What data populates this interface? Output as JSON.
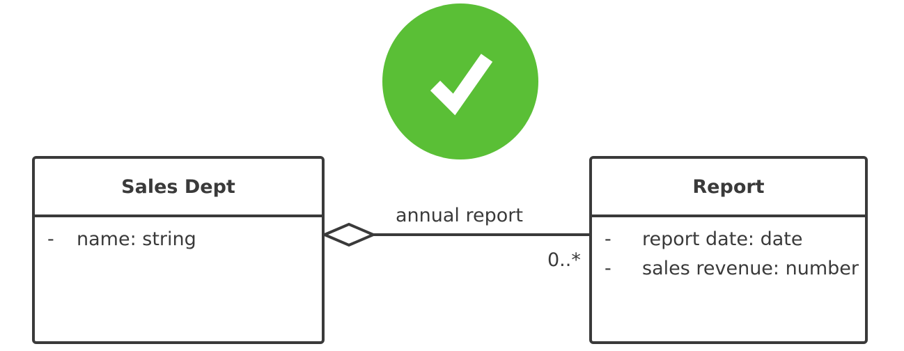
{
  "colors": {
    "check_green": "#5abf36",
    "check_mark": "#ffffff",
    "line": "#3a3a3a",
    "text": "#3a3a3a"
  },
  "icons": {
    "status": "checkmark-icon"
  },
  "classes": {
    "sales_dept": {
      "name": "Sales Dept",
      "attributes": [
        {
          "visibility": "-",
          "text": "name: string"
        }
      ]
    },
    "report": {
      "name": "Report",
      "attributes": [
        {
          "visibility": "-",
          "text": "report date: date"
        },
        {
          "visibility": "-",
          "text": "sales revenue: number"
        }
      ]
    }
  },
  "association": {
    "type": "aggregation",
    "label": "annual report",
    "multiplicity_report": "0..*"
  }
}
